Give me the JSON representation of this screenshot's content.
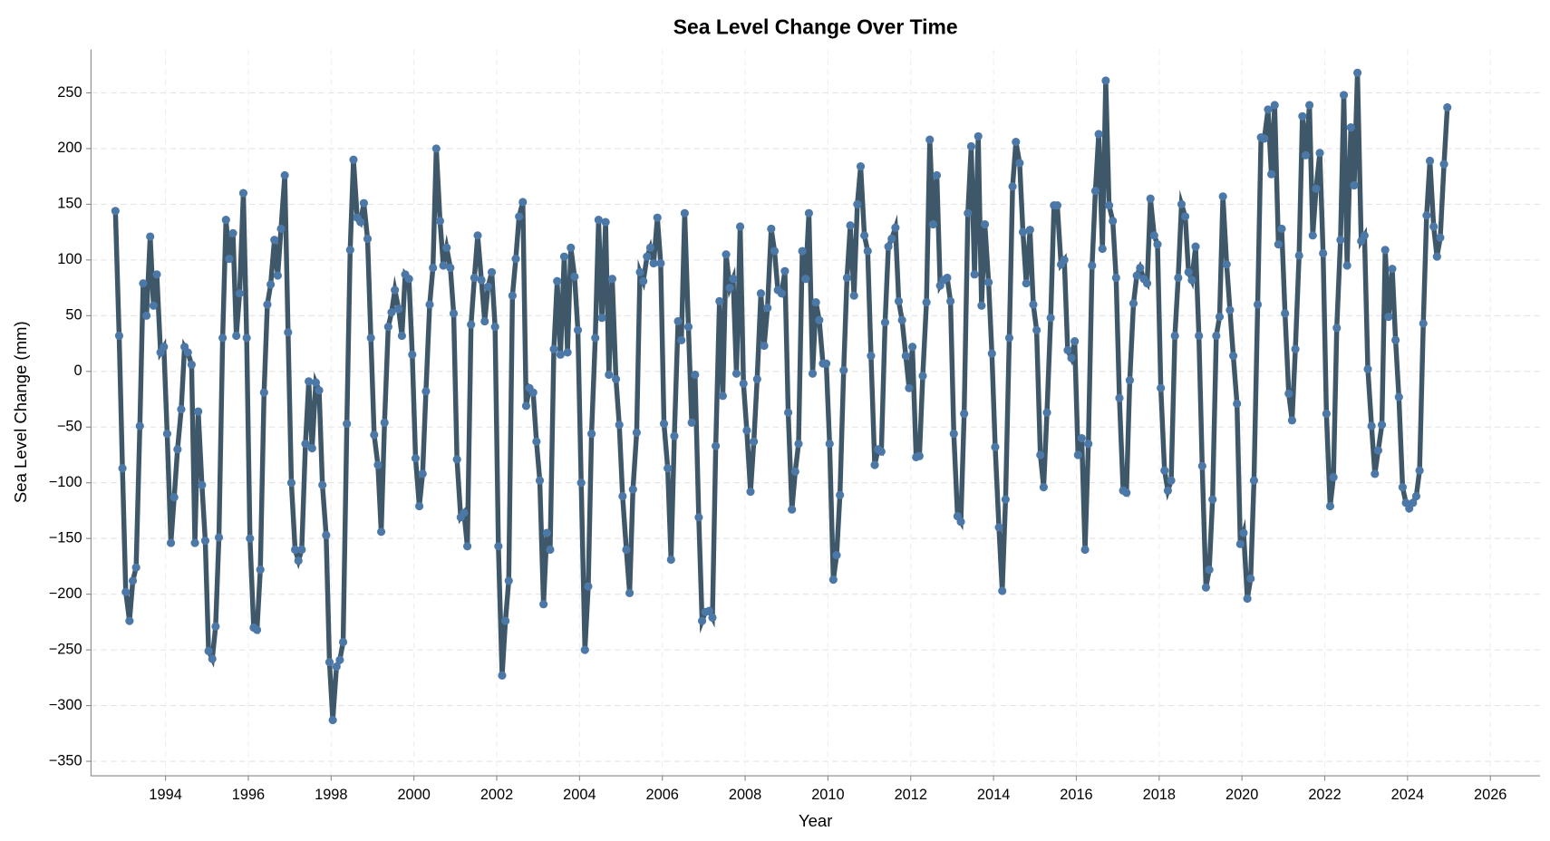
{
  "chart_data": {
    "type": "line",
    "title": "Sea Level Change Over Time",
    "x_label": "Year",
    "y_label": "Sea Level Change (mm)",
    "x": [
      1992.79,
      1992.88,
      1992.96,
      1993.04,
      1993.13,
      1993.21,
      1993.29,
      1993.38,
      1993.46,
      1993.54,
      1993.63,
      1993.71,
      1993.79,
      1993.88,
      1993.96,
      1994.04,
      1994.13,
      1994.21,
      1994.29,
      1994.38,
      1994.46,
      1994.54,
      1994.63,
      1994.71,
      1994.79,
      1994.88,
      1994.96,
      1995.04,
      1995.13,
      1995.21,
      1995.29,
      1995.38,
      1995.46,
      1995.54,
      1995.63,
      1995.71,
      1995.79,
      1995.88,
      1995.96,
      1996.04,
      1996.13,
      1996.21,
      1996.29,
      1996.38,
      1996.46,
      1996.54,
      1996.63,
      1996.71,
      1996.79,
      1996.88,
      1996.96,
      1997.04,
      1997.13,
      1997.21,
      1997.29,
      1997.38,
      1997.46,
      1997.54,
      1997.63,
      1997.71,
      1997.79,
      1997.88,
      1997.96,
      1998.04,
      1998.13,
      1998.21,
      1998.29,
      1998.38,
      1998.46,
      1998.54,
      1998.63,
      1998.71,
      1998.79,
      1998.88,
      1998.96,
      1999.04,
      1999.13,
      1999.21,
      1999.29,
      1999.38,
      1999.46,
      1999.54,
      1999.63,
      1999.71,
      1999.79,
      1999.88,
      1999.96,
      2000.04,
      2000.13,
      2000.21,
      2000.29,
      2000.38,
      2000.46,
      2000.54,
      2000.63,
      2000.71,
      2000.79,
      2000.88,
      2000.96,
      2001.04,
      2001.13,
      2001.21,
      2001.29,
      2001.38,
      2001.46,
      2001.54,
      2001.63,
      2001.71,
      2001.79,
      2001.88,
      2001.96,
      2002.04,
      2002.13,
      2002.21,
      2002.29,
      2002.38,
      2002.46,
      2002.54,
      2002.63,
      2002.71,
      2002.79,
      2002.88,
      2002.96,
      2003.04,
      2003.13,
      2003.21,
      2003.29,
      2003.38,
      2003.46,
      2003.54,
      2003.63,
      2003.71,
      2003.79,
      2003.88,
      2003.96,
      2004.04,
      2004.13,
      2004.21,
      2004.29,
      2004.38,
      2004.46,
      2004.54,
      2004.63,
      2004.71,
      2004.79,
      2004.88,
      2004.96,
      2005.04,
      2005.13,
      2005.21,
      2005.29,
      2005.38,
      2005.46,
      2005.54,
      2005.63,
      2005.71,
      2005.79,
      2005.88,
      2005.96,
      2006.04,
      2006.13,
      2006.21,
      2006.29,
      2006.38,
      2006.46,
      2006.54,
      2006.63,
      2006.71,
      2006.79,
      2006.88,
      2006.96,
      2007.04,
      2007.13,
      2007.21,
      2007.29,
      2007.38,
      2007.46,
      2007.54,
      2007.63,
      2007.71,
      2007.79,
      2007.88,
      2007.96,
      2008.04,
      2008.13,
      2008.21,
      2008.29,
      2008.38,
      2008.46,
      2008.54,
      2008.63,
      2008.71,
      2008.79,
      2008.88,
      2008.96,
      2009.04,
      2009.13,
      2009.21,
      2009.29,
      2009.38,
      2009.46,
      2009.54,
      2009.63,
      2009.71,
      2009.79,
      2009.88,
      2009.96,
      2010.04,
      2010.13,
      2010.21,
      2010.29,
      2010.38,
      2010.46,
      2010.54,
      2010.63,
      2010.71,
      2010.79,
      2010.88,
      2010.96,
      2011.04,
      2011.13,
      2011.21,
      2011.29,
      2011.38,
      2011.46,
      2011.54,
      2011.63,
      2011.71,
      2011.79,
      2011.88,
      2011.96,
      2012.04,
      2012.13,
      2012.21,
      2012.29,
      2012.38,
      2012.46,
      2012.54,
      2012.63,
      2012.71,
      2012.79,
      2012.88,
      2012.96,
      2013.04,
      2013.13,
      2013.21,
      2013.29,
      2013.38,
      2013.46,
      2013.54,
      2013.63,
      2013.71,
      2013.79,
      2013.88,
      2013.96,
      2014.04,
      2014.13,
      2014.21,
      2014.29,
      2014.38,
      2014.46,
      2014.54,
      2014.63,
      2014.71,
      2014.79,
      2014.88,
      2014.96,
      2015.04,
      2015.13,
      2015.21,
      2015.29,
      2015.38,
      2015.46,
      2015.54,
      2015.63,
      2015.71,
      2015.79,
      2015.88,
      2015.96,
      2016.04,
      2016.13,
      2016.21,
      2016.29,
      2016.38,
      2016.46,
      2016.54,
      2016.63,
      2016.71,
      2016.79,
      2016.88,
      2016.96,
      2017.04,
      2017.13,
      2017.21,
      2017.29,
      2017.38,
      2017.46,
      2017.54,
      2017.63,
      2017.71,
      2017.79,
      2017.88,
      2017.96,
      2018.04,
      2018.13,
      2018.21,
      2018.29,
      2018.38,
      2018.46,
      2018.54,
      2018.63,
      2018.71,
      2018.79,
      2018.88,
      2018.96,
      2019.04,
      2019.13,
      2019.21,
      2019.29,
      2019.38,
      2019.46,
      2019.54,
      2019.63,
      2019.71,
      2019.79,
      2019.88,
      2019.96,
      2020.04,
      2020.13,
      2020.21,
      2020.29,
      2020.38,
      2020.46,
      2020.54,
      2020.63,
      2020.71,
      2020.79,
      2020.88,
      2020.96,
      2021.04,
      2021.13,
      2021.21,
      2021.29,
      2021.38,
      2021.46,
      2021.54,
      2021.63,
      2021.71,
      2021.79,
      2021.88,
      2021.96,
      2022.04,
      2022.13,
      2022.21,
      2022.29,
      2022.38,
      2022.46,
      2022.54,
      2022.63,
      2022.71,
      2022.79,
      2022.88,
      2022.96,
      2023.04,
      2023.13,
      2023.21,
      2023.29,
      2023.38,
      2023.46,
      2023.54,
      2023.63,
      2023.71,
      2023.79,
      2023.88,
      2023.96,
      2024.04,
      2024.13,
      2024.21,
      2024.29,
      2024.38,
      2024.46,
      2024.54,
      2024.63,
      2024.71,
      2024.79,
      2024.88,
      2024.96
    ],
    "series": [
      {
        "line_color": "#3e5869",
        "color": "#4c78a8",
        "values": [
          144,
          32,
          -87,
          -198,
          -224,
          -188,
          -176,
          -49,
          79,
          50,
          121,
          59,
          87,
          17,
          22,
          -56,
          -154,
          -113,
          -70,
          -34,
          22,
          17,
          6,
          -154,
          -36,
          -102,
          -152,
          -251,
          -258,
          -229,
          -149,
          30,
          136,
          101,
          124,
          32,
          70,
          160,
          30,
          -150,
          -230,
          -232,
          -178,
          -19,
          60,
          78,
          118,
          86,
          128,
          176,
          35,
          -100,
          -160,
          -170,
          -160,
          -65,
          -9,
          -69,
          -10,
          -17,
          -102,
          -147,
          -261,
          -313,
          -265,
          -259,
          -243,
          -47,
          109,
          190,
          138,
          134,
          151,
          119,
          30,
          -57,
          -84,
          -144,
          -46,
          40,
          53,
          73,
          56,
          32,
          87,
          83,
          15,
          -78,
          -121,
          -92,
          -18,
          60,
          93,
          200,
          135,
          95,
          111,
          93,
          52,
          -79,
          -131,
          -127,
          -157,
          42,
          84,
          122,
          82,
          45,
          76,
          89,
          40,
          -157,
          -273,
          -224,
          -188,
          68,
          101,
          139,
          152,
          -31,
          -15,
          -19,
          -63,
          -98,
          -209,
          -145,
          -160,
          20,
          81,
          15,
          103,
          17,
          111,
          85,
          37,
          -100,
          -250,
          -193,
          -56,
          30,
          136,
          48,
          134,
          -3,
          83,
          -7,
          -48,
          -112,
          -160,
          -199,
          -106,
          -55,
          89,
          81,
          103,
          111,
          97,
          138,
          97,
          -47,
          -87,
          -169,
          -58,
          45,
          28,
          142,
          40,
          -46,
          -3,
          -131,
          -224,
          -216,
          -215,
          -221,
          -67,
          63,
          -22,
          105,
          75,
          83,
          -2,
          130,
          -11,
          -53,
          -108,
          -63,
          -7,
          70,
          23,
          57,
          128,
          108,
          73,
          70,
          90,
          -37,
          -124,
          -90,
          -65,
          108,
          83,
          142,
          -2,
          62,
          46,
          7,
          7,
          -65,
          -187,
          -165,
          -111,
          1,
          84,
          131,
          68,
          150,
          184,
          122,
          108,
          14,
          -84,
          -70,
          -72,
          44,
          112,
          119,
          129,
          63,
          46,
          14,
          -15,
          22,
          -77,
          -76,
          -4,
          62,
          208,
          132,
          176,
          77,
          82,
          84,
          63,
          -56,
          -130,
          -135,
          -38,
          142,
          202,
          87,
          211,
          59,
          132,
          80,
          16,
          -68,
          -140,
          -197,
          -115,
          30,
          166,
          206,
          187,
          125,
          79,
          127,
          60,
          37,
          -75,
          -104,
          -37,
          48,
          149,
          149,
          96,
          100,
          19,
          12,
          27,
          -75,
          -60,
          -160,
          -65,
          95,
          162,
          213,
          110,
          261,
          149,
          135,
          84,
          -24,
          -107,
          -109,
          -8,
          61,
          86,
          93,
          83,
          79,
          155,
          122,
          114,
          -15,
          -89,
          -107,
          -98,
          32,
          84,
          150,
          139,
          89,
          82,
          112,
          32,
          -85,
          -194,
          -178,
          -115,
          32,
          49,
          157,
          96,
          55,
          14,
          -29,
          -155,
          -145,
          -204,
          -186,
          -98,
          60,
          210,
          209,
          235,
          177,
          239,
          114,
          128,
          52,
          -20,
          -44,
          20,
          104,
          229,
          194,
          239,
          122,
          164,
          196,
          106,
          -38,
          -121,
          -95,
          39,
          118,
          248,
          95,
          219,
          167,
          268,
          117,
          122,
          2,
          -49,
          -92,
          -71,
          -48,
          109,
          49,
          92,
          28,
          -23,
          -104,
          -118,
          -123,
          -118,
          -112,
          -89,
          43,
          140,
          189,
          130,
          103,
          120,
          186,
          237
        ]
      }
    ],
    "xlim": [
      1992.2,
      2027.2
    ],
    "ylim": [
      -363,
      289
    ],
    "xticks": [
      1994,
      1996,
      1998,
      2000,
      2002,
      2004,
      2006,
      2008,
      2010,
      2012,
      2014,
      2016,
      2018,
      2020,
      2022,
      2024,
      2026
    ],
    "yticks": [
      {
        "value": -350,
        "label": "−350"
      },
      {
        "value": -300,
        "label": "−300"
      },
      {
        "value": -250,
        "label": "−250"
      },
      {
        "value": -200,
        "label": "−200"
      },
      {
        "value": -150,
        "label": "−150"
      },
      {
        "value": -100,
        "label": "−100"
      },
      {
        "value": -50,
        "label": "−50"
      },
      0,
      50,
      100,
      150,
      200,
      250
    ],
    "grid": true
  }
}
